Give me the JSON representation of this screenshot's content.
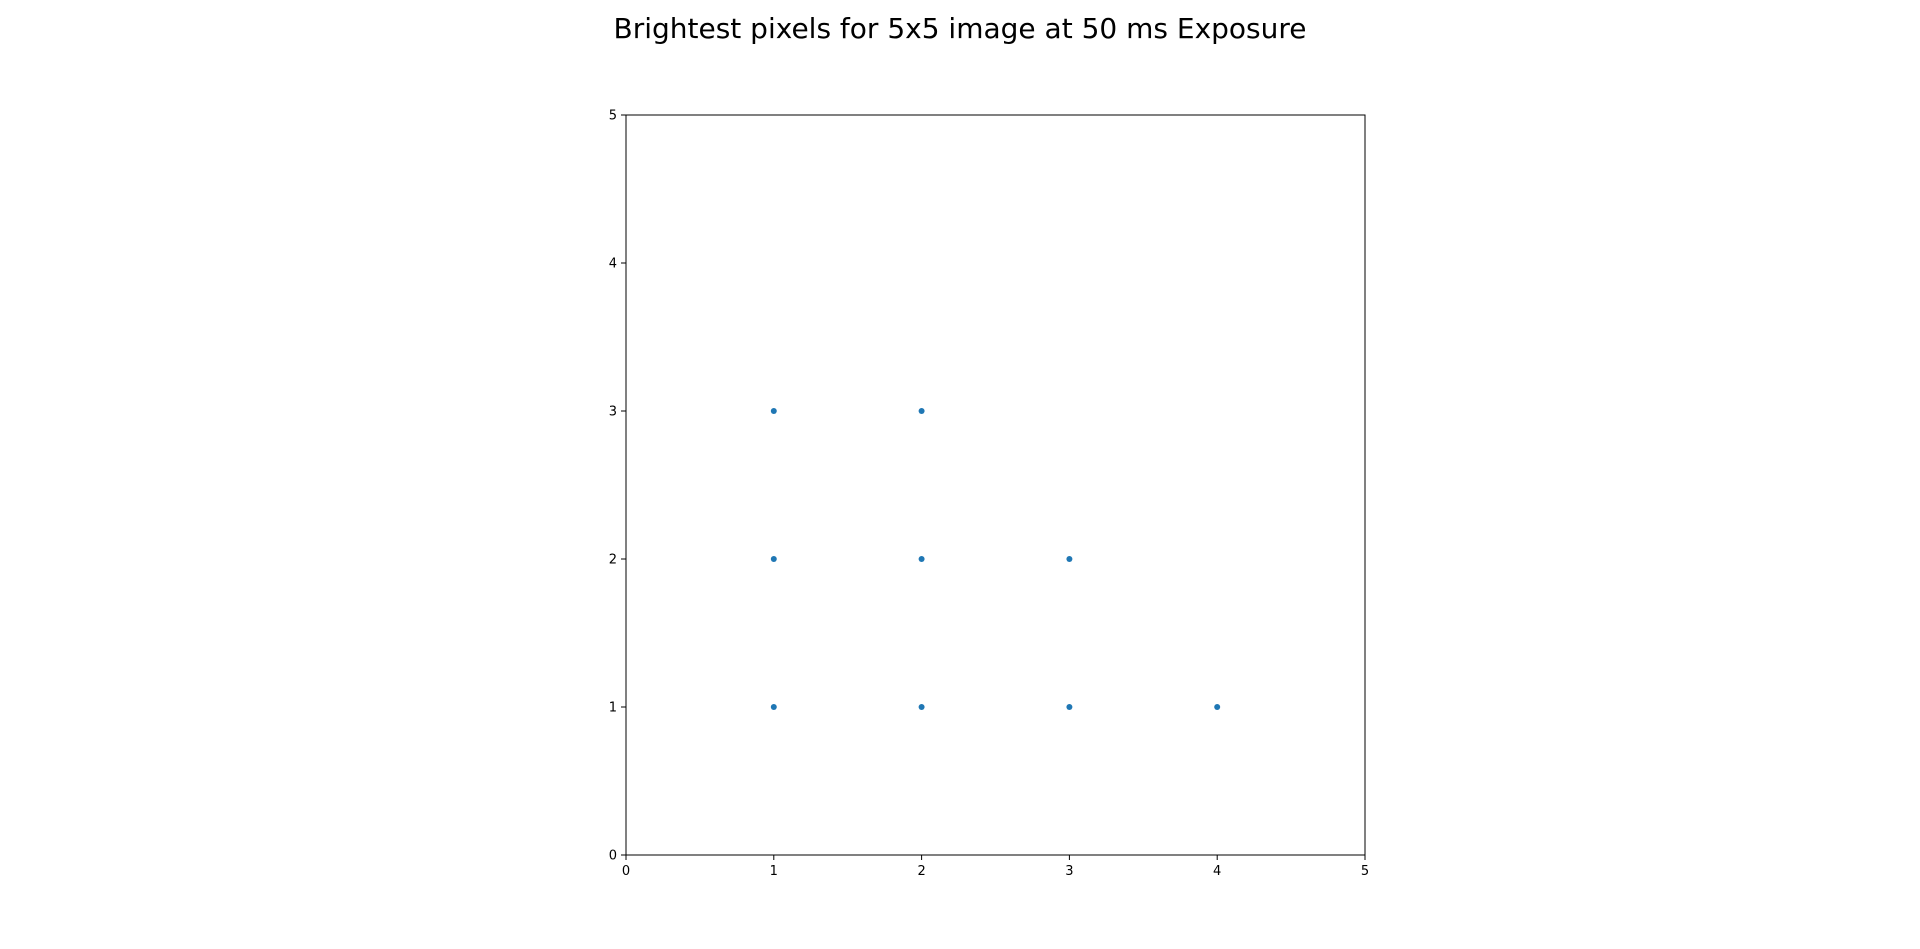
{
  "chart_data": {
    "type": "scatter",
    "title": "Brightest pixels for 5x5 image at 50 ms Exposure",
    "xlabel": "",
    "ylabel": "",
    "xlim": [
      0,
      5
    ],
    "ylim": [
      0,
      5
    ],
    "xticks": [
      "0",
      "1",
      "2",
      "3",
      "4",
      "5"
    ],
    "yticks": [
      "0",
      "1",
      "2",
      "3",
      "4",
      "5"
    ],
    "grid": false,
    "marker_color": "#1f77b4",
    "points": [
      {
        "x": 1,
        "y": 3
      },
      {
        "x": 2,
        "y": 3
      },
      {
        "x": 1,
        "y": 2
      },
      {
        "x": 2,
        "y": 2
      },
      {
        "x": 3,
        "y": 2
      },
      {
        "x": 1,
        "y": 1
      },
      {
        "x": 2,
        "y": 1
      },
      {
        "x": 3,
        "y": 1
      },
      {
        "x": 4,
        "y": 1
      }
    ]
  }
}
